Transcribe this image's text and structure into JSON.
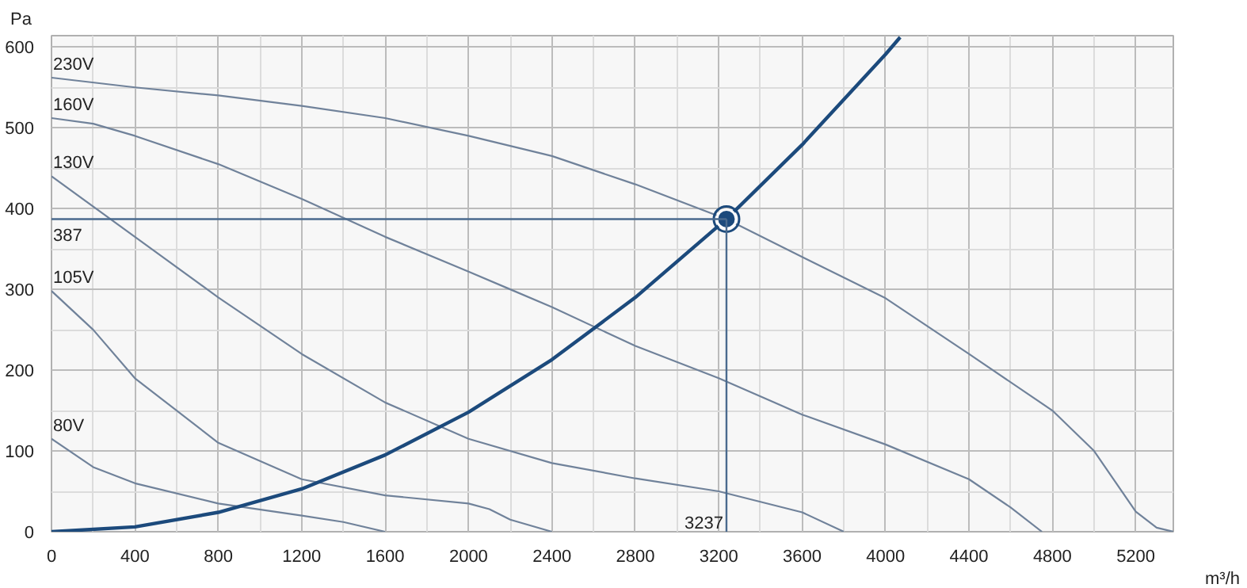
{
  "chart_data": {
    "type": "line",
    "xlabel": "m³/h",
    "ylabel": "Pa",
    "xlim": [
      0,
      5380
    ],
    "ylim": [
      0,
      614
    ],
    "xticks": [
      0,
      400,
      800,
      1200,
      1600,
      2000,
      2400,
      2800,
      3200,
      3600,
      4000,
      4400,
      4800,
      5200
    ],
    "yticks": [
      0,
      100,
      200,
      300,
      400,
      500,
      600
    ],
    "grid": true,
    "line_style": "solid",
    "series": [
      {
        "name": "230V",
        "color": "#70829a",
        "x": [
          0,
          400,
          800,
          1200,
          1600,
          2000,
          2400,
          2800,
          3237,
          3600,
          4000,
          4400,
          4800,
          5000,
          5200,
          5300,
          5380
        ],
        "values": [
          562,
          550,
          540,
          527,
          512,
          490,
          465,
          430,
          387,
          340,
          289,
          220,
          150,
          100,
          25,
          5,
          0
        ]
      },
      {
        "name": "160V",
        "color": "#70829a",
        "x": [
          0,
          200,
          400,
          800,
          1200,
          1600,
          2000,
          2200,
          2400,
          2800,
          3200,
          3600,
          4000,
          4400,
          4600,
          4750
        ],
        "values": [
          512,
          505,
          490,
          455,
          412,
          365,
          322,
          300,
          278,
          230,
          190,
          145,
          108,
          65,
          30,
          0
        ]
      },
      {
        "name": "130V",
        "color": "#70829a",
        "x": [
          0,
          400,
          800,
          1200,
          1600,
          2000,
          2400,
          2800,
          3200,
          3600,
          3800
        ],
        "values": [
          440,
          365,
          290,
          220,
          160,
          115,
          85,
          66,
          50,
          24,
          0
        ]
      },
      {
        "name": "105V",
        "color": "#70829a",
        "x": [
          0,
          200,
          400,
          800,
          1200,
          1600,
          2000,
          2100,
          2200,
          2400
        ],
        "values": [
          298,
          250,
          190,
          110,
          65,
          45,
          35,
          28,
          15,
          0
        ]
      },
      {
        "name": "80V",
        "color": "#70829a",
        "x": [
          0,
          200,
          400,
          800,
          1200,
          1400,
          1600
        ],
        "values": [
          115,
          80,
          60,
          35,
          20,
          12,
          0
        ]
      },
      {
        "color": "#1c4a7c",
        "x": [
          0,
          400,
          800,
          1200,
          1600,
          2000,
          2400,
          2800,
          3237,
          3600,
          4000,
          4070
        ],
        "values": [
          0,
          6,
          24,
          53,
          95,
          148,
          213,
          290,
          387,
          479,
          591,
          612
        ]
      },
      {
        "type": "scatter",
        "marker": "circle",
        "color": "#1c4a7c",
        "x": [
          3237
        ],
        "values": [
          387
        ]
      }
    ],
    "ref_lines": [
      {
        "axis": "y",
        "value": 387,
        "label": "387",
        "color": "#4a6a8e"
      },
      {
        "axis": "x",
        "value": 3237,
        "label": "3237",
        "color": "#4a6a8e"
      }
    ]
  }
}
